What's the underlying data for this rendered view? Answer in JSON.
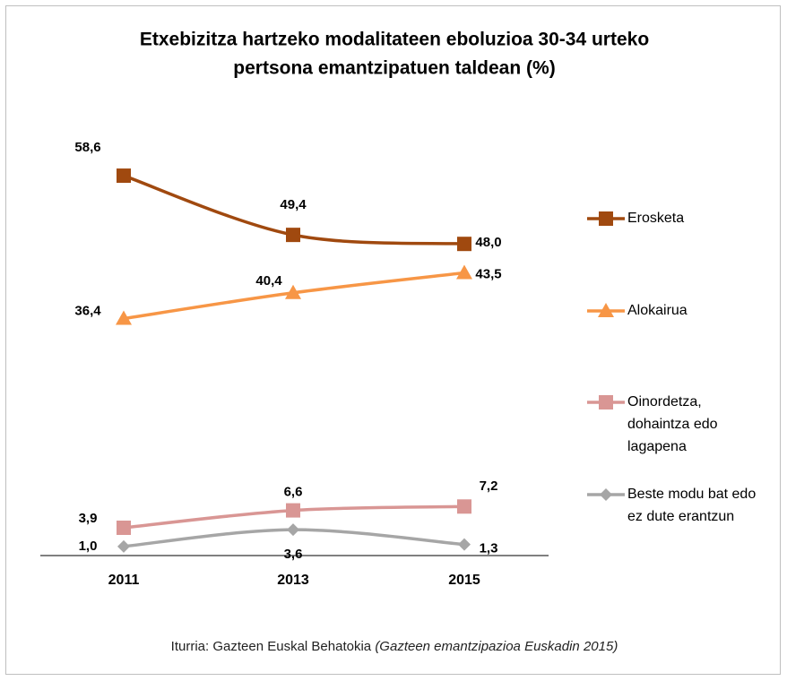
{
  "chart_data": {
    "type": "line",
    "title": [
      "Etxebizitza hartzeko modalitateen eboluzioa 30-34 urteko",
      "pertsona emantzipatuen taldean (%)"
    ],
    "categories": [
      "2011",
      "2013",
      "2015"
    ],
    "ylim": [
      0,
      60
    ],
    "series": [
      {
        "name": "Erosketa",
        "color": "#a0490f",
        "marker": "square",
        "values": [
          58.6,
          49.4,
          48.0
        ],
        "value_labels": [
          "58,6",
          "49,4",
          "48,0"
        ]
      },
      {
        "name": "Alokairua",
        "color": "#f79646",
        "marker": "triangle",
        "values": [
          36.4,
          40.4,
          43.5
        ],
        "value_labels": [
          "36,4",
          "40,4",
          "43,5"
        ]
      },
      {
        "name": "Oinordetza, dohaintza edo lagapena",
        "color": "#d99694",
        "marker": "square",
        "values": [
          3.9,
          6.6,
          7.2
        ],
        "value_labels": [
          "3,9",
          "6,6",
          "7,2"
        ]
      },
      {
        "name": "Beste modu bat edo ez dute erantzun",
        "color": "#a6a6a6",
        "marker": "diamond",
        "values": [
          1.0,
          3.6,
          1.3
        ],
        "value_labels": [
          "1,0",
          "3,6",
          "1,3"
        ]
      }
    ],
    "legend": "right",
    "source": [
      "Iturria: Gazteen Euskal Behatokia",
      "(Gazteen emantzipazioa Euskadin 2015)"
    ]
  }
}
